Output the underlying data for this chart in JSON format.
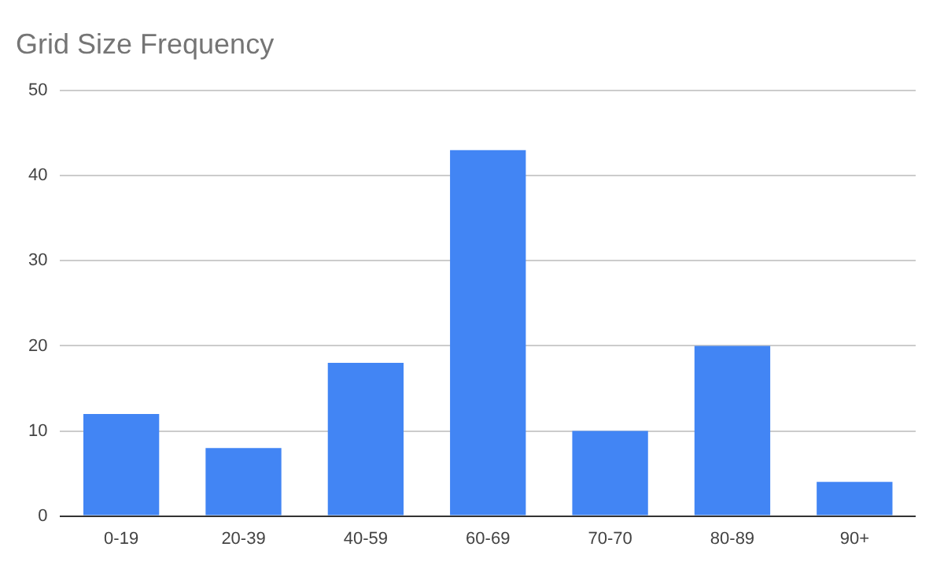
{
  "chart_data": {
    "type": "bar",
    "title": "Grid Size Frequency",
    "categories": [
      "0-19",
      "20-39",
      "40-59",
      "60-69",
      "70-70",
      "80-89",
      "90+"
    ],
    "values": [
      12,
      8,
      18,
      43,
      10,
      20,
      4
    ],
    "color": "#4285f4",
    "ylim": [
      0,
      50
    ],
    "yticks": [
      0,
      10,
      20,
      30,
      40,
      50
    ],
    "grid": "y",
    "legend": false
  }
}
